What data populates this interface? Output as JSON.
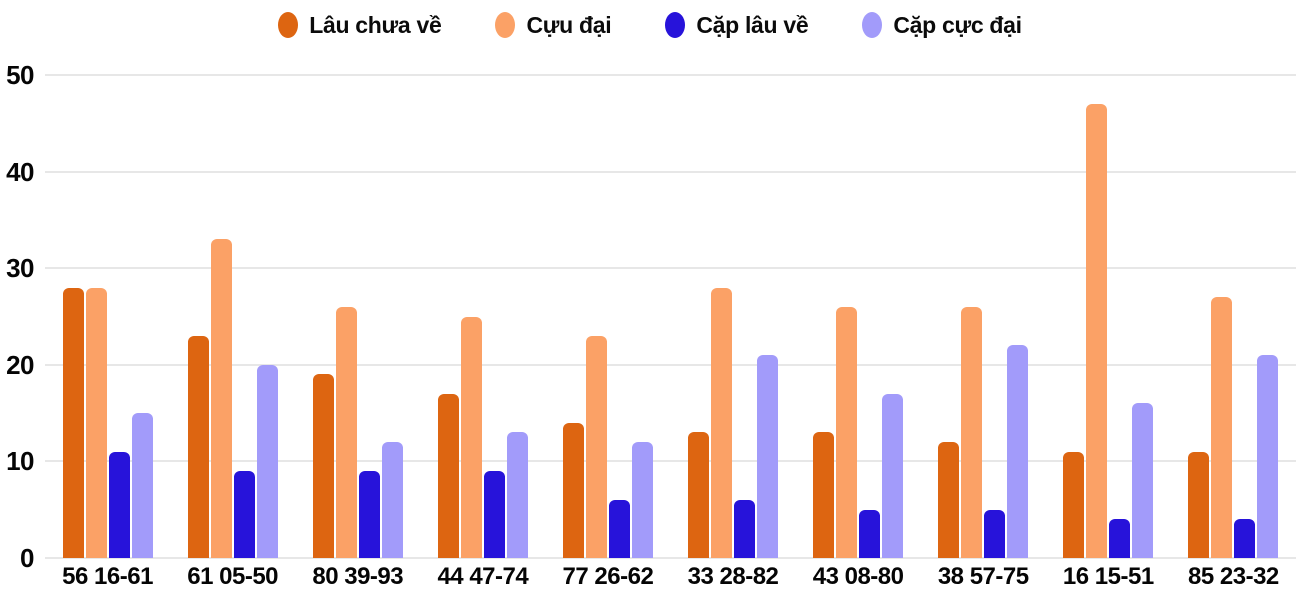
{
  "chart_data": {
    "type": "bar",
    "title": "",
    "xlabel": "",
    "ylabel": "",
    "ylim": [
      0,
      50
    ],
    "y_ticks": [
      0,
      10,
      20,
      30,
      40,
      50
    ],
    "grid": true,
    "legend_position": "top",
    "categories": [
      "56 16-61",
      "61 05-50",
      "80 39-93",
      "44 47-74",
      "77 26-62",
      "33 28-82",
      "43 08-80",
      "38 57-75",
      "16 15-51",
      "85 23-32"
    ],
    "series": [
      {
        "name": "Lâu chưa về",
        "color": "#dd6511",
        "values": [
          28,
          23,
          19,
          17,
          14,
          13,
          13,
          12,
          11,
          11
        ]
      },
      {
        "name": "Cựu đại",
        "color": "#fba166",
        "values": [
          28,
          33,
          26,
          25,
          23,
          28,
          26,
          26,
          47,
          27
        ]
      },
      {
        "name": "Cặp lâu về",
        "color": "#2713da",
        "values": [
          11,
          9,
          9,
          9,
          6,
          6,
          5,
          5,
          4,
          4
        ]
      },
      {
        "name": "Cặp cực đại",
        "color": "#a29bfa",
        "values": [
          15,
          20,
          12,
          13,
          12,
          21,
          17,
          22,
          16,
          21
        ]
      }
    ]
  },
  "colors": {
    "gridline": "#e7e7e7",
    "text": "#0b0b0b",
    "background": "#ffffff"
  }
}
